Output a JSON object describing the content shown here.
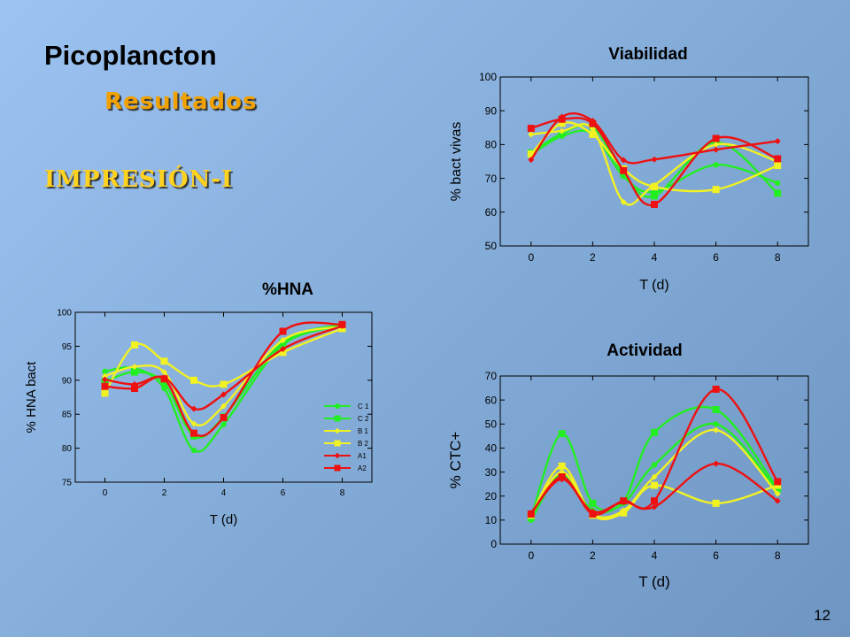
{
  "slide": {
    "title": "Picoplancton",
    "subtitle": "Resultados",
    "heading": "IMPRESIÓN-I",
    "page_number": "12"
  },
  "series_style": [
    {
      "name": "C 1",
      "color": "#22ee22",
      "marker": "circle"
    },
    {
      "name": "C 2",
      "color": "#22ee22",
      "marker": "square"
    },
    {
      "name": "B 1",
      "color": "#f2f222",
      "marker": "diamond"
    },
    {
      "name": "B 2",
      "color": "#f2f222",
      "marker": "square"
    },
    {
      "name": "A1",
      "color": "#ee1111",
      "marker": "diamond"
    },
    {
      "name": "A2",
      "color": "#ee1111",
      "marker": "square"
    }
  ],
  "chart_data": [
    {
      "id": "hna",
      "type": "line",
      "title": "%HNA",
      "xlabel": "T (d)",
      "ylabel": "% HNA bact",
      "xlim": [
        -1,
        9
      ],
      "ylim": [
        75,
        100
      ],
      "xticks": [
        0,
        2,
        4,
        6,
        8
      ],
      "yticks": [
        75,
        80,
        85,
        90,
        95,
        100
      ],
      "grid": false,
      "legend": "right",
      "x": [
        0,
        1,
        2,
        3,
        4,
        6,
        8
      ],
      "series": [
        {
          "name": "C 1",
          "values": [
            91.3,
            91.8,
            88.8,
            79.7,
            83.5,
            95.2,
            98.0
          ]
        },
        {
          "name": "C 2",
          "values": [
            89.8,
            91.2,
            89.6,
            81.8,
            84.6,
            95.6,
            98.2
          ]
        },
        {
          "name": "B 1",
          "values": [
            90.6,
            92.0,
            91.2,
            83.6,
            86.2,
            95.9,
            97.9
          ]
        },
        {
          "name": "B 2",
          "values": [
            88.1,
            95.2,
            92.8,
            90.0,
            89.4,
            94.1,
            97.6
          ]
        },
        {
          "name": "A1",
          "values": [
            90.1,
            89.4,
            90.4,
            85.8,
            87.9,
            94.6,
            98.0
          ]
        },
        {
          "name": "A2",
          "values": [
            89.1,
            88.8,
            90.2,
            82.2,
            84.5,
            97.2,
            98.2
          ]
        }
      ]
    },
    {
      "id": "viab",
      "type": "line",
      "title": "Viabilidad",
      "xlabel": "T (d)",
      "ylabel": "% bact vivas",
      "xlim": [
        -1,
        9
      ],
      "ylim": [
        50,
        100
      ],
      "xticks": [
        0,
        2,
        4,
        6,
        8
      ],
      "yticks": [
        50,
        60,
        70,
        80,
        90,
        100
      ],
      "grid": false,
      "legend": "none",
      "x": [
        0,
        1,
        2,
        3,
        4,
        6,
        8
      ],
      "series": [
        {
          "name": "C 1",
          "values": [
            77.0,
            82.5,
            83.2,
            70.6,
            66.0,
            74.0,
            68.6
          ]
        },
        {
          "name": "C 2",
          "values": [
            77.5,
            83.3,
            85.2,
            71.5,
            64.8,
            80.7,
            65.6
          ]
        },
        {
          "name": "B 1",
          "values": [
            83.0,
            84.0,
            84.6,
            63.0,
            68.0,
            80.0,
            75.0
          ]
        },
        {
          "name": "B 2",
          "values": [
            77.2,
            86.3,
            83.0,
            72.8,
            67.5,
            66.7,
            73.8
          ]
        },
        {
          "name": "A1",
          "values": [
            75.5,
            88.2,
            87.0,
            75.4,
            75.6,
            78.5,
            81.0
          ]
        },
        {
          "name": "A2",
          "values": [
            84.8,
            87.5,
            86.2,
            72.3,
            62.3,
            81.8,
            75.8
          ]
        }
      ]
    },
    {
      "id": "act",
      "type": "line",
      "title": "Actividad",
      "xlabel": "T (d)",
      "ylabel": "% CTC+",
      "xlim": [
        -1,
        9
      ],
      "ylim": [
        0,
        70
      ],
      "xticks": [
        0,
        2,
        4,
        6,
        8
      ],
      "yticks": [
        0,
        10,
        20,
        30,
        40,
        50,
        60,
        70
      ],
      "grid": false,
      "legend": "none",
      "x": [
        0,
        1,
        2,
        3,
        4,
        6,
        8
      ],
      "series": [
        {
          "name": "C 1",
          "values": [
            10.0,
            29.0,
            14.0,
            17.0,
            33.0,
            50.0,
            22.0
          ]
        },
        {
          "name": "C 2",
          "values": [
            11.0,
            46.0,
            17.0,
            18.0,
            46.5,
            56.0,
            23.0
          ]
        },
        {
          "name": "B 1",
          "values": [
            12.0,
            30.0,
            12.5,
            14.0,
            28.0,
            47.5,
            21.0
          ]
        },
        {
          "name": "B 2",
          "values": [
            12.0,
            32.5,
            12.0,
            13.0,
            24.5,
            17.0,
            24.5
          ]
        },
        {
          "name": "A1",
          "values": [
            13.0,
            27.0,
            13.5,
            17.5,
            15.5,
            33.5,
            18.0
          ]
        },
        {
          "name": "A2",
          "values": [
            12.5,
            28.0,
            12.5,
            18.0,
            18.0,
            64.5,
            26.0
          ]
        }
      ]
    }
  ]
}
